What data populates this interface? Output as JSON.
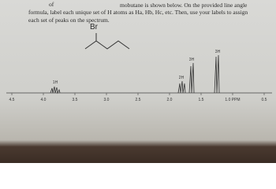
{
  "header": {
    "lines": [
      "of",
      "mobutane is shown below. On the provided line angle",
      "formula, label each unique set of H atoms as Ha, Hb, Hc, etc. Then, use your labels to assign",
      "each set of peaks on the spectrum."
    ]
  },
  "molecule": {
    "label": "Br"
  },
  "spectrum": {
    "peak_labels": [
      "1H",
      "2H",
      "3H",
      "3H"
    ],
    "ticks": [
      "4.5",
      "4.0",
      "3.5",
      "3.0",
      "2.5",
      "2.0",
      "1.5",
      "1.0 PPM",
      "0.5"
    ]
  }
}
